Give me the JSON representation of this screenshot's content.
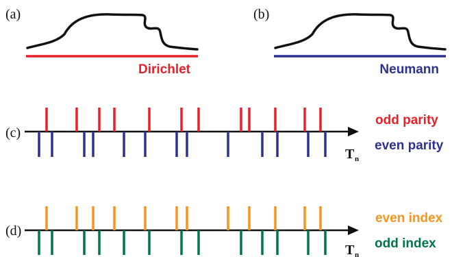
{
  "colors": {
    "curve": "#111111",
    "dirichlet": "#e8202a",
    "neumann": "#2e3192",
    "odd_parity": "#e8202a",
    "even_parity": "#2e3192",
    "even_index": "#f7941d",
    "odd_index": "#00754a",
    "axis": "#111111"
  },
  "panel_a": {
    "label": "(a)",
    "boundary": "Dirichlet"
  },
  "panel_b": {
    "label": "(b)",
    "boundary": "Neumann"
  },
  "panel_c": {
    "label": "(c)",
    "upper_legend": "odd parity",
    "lower_legend": "even parity",
    "axis_label": "T",
    "axis_sub": "n",
    "upper_ticks": [
      68,
      112,
      145,
      167,
      218,
      265,
      290,
      352,
      364,
      402,
      445,
      468
    ],
    "lower_ticks": [
      57,
      76,
      123,
      136,
      181,
      212,
      258,
      273,
      333,
      383,
      405,
      450,
      475
    ]
  },
  "panel_d": {
    "label": "(d)",
    "upper_legend": "even index",
    "lower_legend": "odd index",
    "axis_label": "T",
    "axis_sub": "n",
    "upper_ticks": [
      68,
      112,
      136,
      167,
      212,
      258,
      273,
      333,
      364,
      402,
      445,
      468
    ],
    "lower_ticks": [
      57,
      76,
      123,
      145,
      181,
      218,
      265,
      290,
      352,
      383,
      405,
      450,
      475
    ]
  }
}
